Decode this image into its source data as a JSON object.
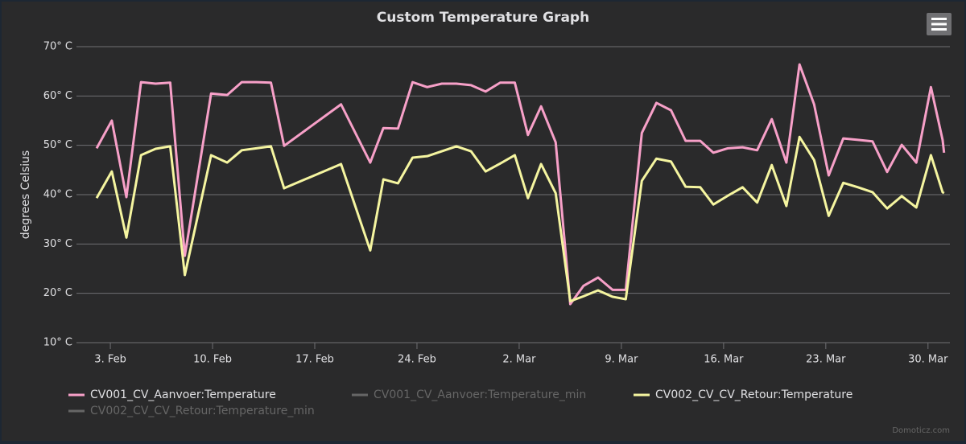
{
  "chart_data": {
    "type": "line",
    "title": "Custom Temperature Graph",
    "y_axis_label": "degrees Celsius",
    "credit": "Domoticz.com",
    "x": [
      2.06,
      3.1,
      4.1,
      5.1,
      6.1,
      7.1,
      8.1,
      9.9,
      11.0,
      12.0,
      13.0,
      14.0,
      14.9,
      18.8,
      20.8,
      21.7,
      22.7,
      23.7,
      24.7,
      25.7,
      26.7,
      27.7,
      28.7,
      29.7,
      30.7,
      31.6,
      32.5,
      33.5,
      34.5,
      35.4,
      36.4,
      37.4,
      38.3,
      39.4,
      40.4,
      41.4,
      42.4,
      43.4,
      44.3,
      45.3,
      46.3,
      47.3,
      48.3,
      49.3,
      50.2,
      51.2,
      52.2,
      53.2,
      54.2,
      55.2,
      56.2,
      57.2,
      58.2,
      59.2,
      60.0,
      60.1
    ],
    "series": [
      {
        "name": "CV001_CV_Aanvoer:Temperature",
        "color": "#f7a0c8",
        "values": [
          49.4,
          55,
          39.5,
          62.8,
          62.5,
          62.7,
          27.6,
          60.5,
          60.2,
          62.8,
          62.8,
          62.7,
          49.9,
          58.3,
          46.5,
          53.5,
          53.4,
          62.8,
          61.8,
          62.5,
          62.5,
          62.2,
          60.9,
          62.7,
          62.7,
          52.1,
          57.9,
          50.6,
          17.8,
          21.5,
          23.2,
          20.7,
          20.7,
          52.5,
          58.6,
          57.1,
          50.9,
          50.9,
          48.5,
          49.4,
          49.6,
          49,
          55.3,
          46.5,
          66.4,
          58.3,
          43.9,
          51.4,
          51.1,
          50.8,
          44.6,
          50.1,
          46.5,
          61.8,
          51.1,
          48.5
        ]
      },
      {
        "name": "CV002_CV_CV_Retour:Temperature",
        "color": "#f5f5a0",
        "values": [
          39.3,
          44.7,
          31.3,
          48,
          49.3,
          49.8,
          23.7,
          48,
          46.5,
          49,
          49.4,
          49.8,
          41.3,
          46.2,
          28.7,
          43.1,
          42.3,
          47.5,
          47.8,
          48.8,
          49.8,
          48.8,
          44.7,
          46.3,
          48,
          39.3,
          46.2,
          40.3,
          18.4,
          19.4,
          20.6,
          19.3,
          18.8,
          42.8,
          47.3,
          46.7,
          41.6,
          41.5,
          38,
          39.8,
          41.5,
          38.4,
          46,
          37.7,
          51.7,
          47,
          35.7,
          42.4,
          41.5,
          40.5,
          37.2,
          39.7,
          37.4,
          48,
          40.5,
          40.3
        ]
      }
    ],
    "hidden_series": [
      {
        "name": "CV001_CV_Aanvoer:Temperature_min",
        "color": "#666666"
      },
      {
        "name": "CV002_CV_CV_Retour:Temperature_min",
        "color": "#666666"
      }
    ],
    "xlim": [
      0.68,
      60.5
    ],
    "xticks": [
      {
        "value": 3,
        "label": "3. Feb"
      },
      {
        "value": 10,
        "label": "10. Feb"
      },
      {
        "value": 17,
        "label": "17. Feb"
      },
      {
        "value": 24,
        "label": "24. Feb"
      },
      {
        "value": 31,
        "label": "2. Mar"
      },
      {
        "value": 38,
        "label": "9. Mar"
      },
      {
        "value": 45,
        "label": "16. Mar"
      },
      {
        "value": 52,
        "label": "23. Mar"
      },
      {
        "value": 59,
        "label": "30. Mar"
      }
    ],
    "ylim": [
      10,
      70
    ],
    "yticks": [
      {
        "value": 10,
        "label": "10° C"
      },
      {
        "value": 20,
        "label": "20° C"
      },
      {
        "value": 30,
        "label": "30° C"
      },
      {
        "value": 40,
        "label": "40° C"
      },
      {
        "value": 50,
        "label": "50° C"
      },
      {
        "value": 60,
        "label": "60° C"
      },
      {
        "value": 70,
        "label": "70° C"
      }
    ],
    "grid": true
  }
}
